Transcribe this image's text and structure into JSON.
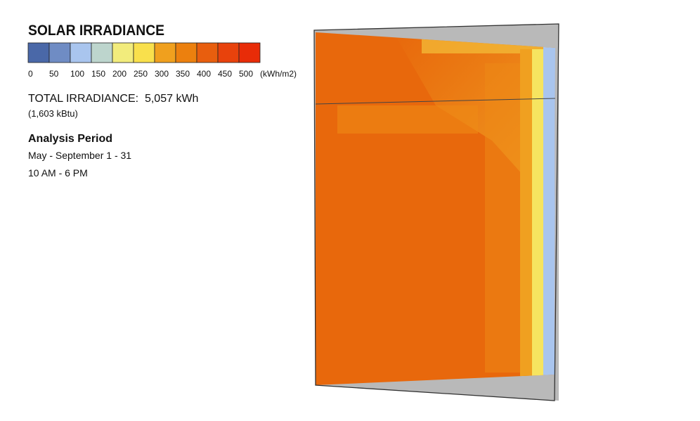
{
  "legend": {
    "title": "SOLAR IRRADIANCE",
    "colors": [
      "#4a68a8",
      "#6f8cc4",
      "#a9c5ee",
      "#bdd5cd",
      "#f2ec7c",
      "#f9e04c",
      "#f0a01e",
      "#ec800e",
      "#e85e0e",
      "#e8420c",
      "#e82c08"
    ],
    "ticks": [
      0,
      50,
      100,
      150,
      200,
      250,
      300,
      350,
      400,
      450,
      500
    ],
    "unit": "(kWh/m2)"
  },
  "summary": {
    "total": "TOTAL IRRADIANCE:  5,057 kWh",
    "total_kbtu": "(1,603 kBtu)"
  },
  "analysis_period": {
    "title": "Analysis Period",
    "dates": "May - September 1 - 31",
    "hours": "10 AM - 6 PM"
  }
}
